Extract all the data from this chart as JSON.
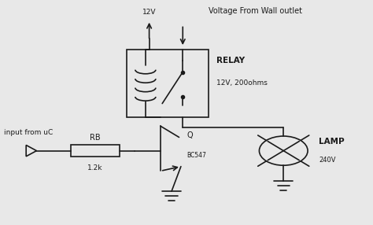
{
  "bg_color": "#e8e8e8",
  "line_color": "#1a1a1a",
  "text_color": "#1a1a1a",
  "labels": {
    "voltage_source": "12V",
    "wall_label": "Voltage From Wall outlet",
    "relay_label": "RELAY",
    "relay_spec": "12V, 200ohms",
    "lamp_label": "LAMP",
    "lamp_spec": "240V",
    "transistor_label": "Q",
    "transistor_spec": "BC547",
    "resistor_label": "RB",
    "resistor_value": "1.2k",
    "input_label": "input from uC"
  }
}
